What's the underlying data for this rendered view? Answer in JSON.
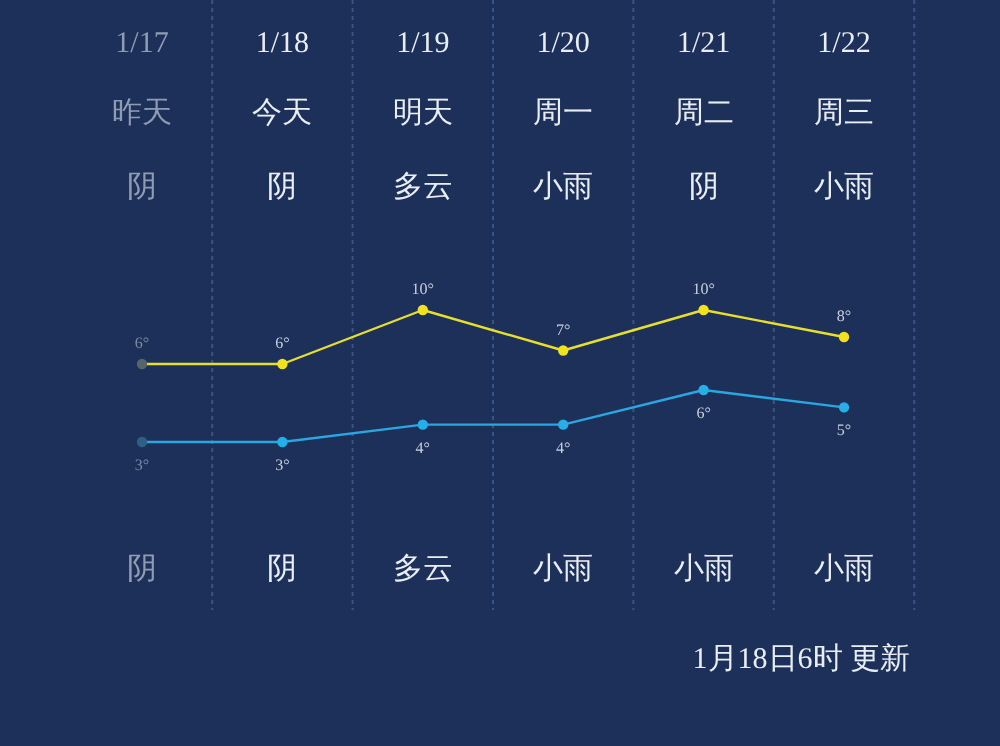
{
  "chart_data": [
    {
      "type": "line",
      "categories": [
        "1/17",
        "1/18",
        "1/19",
        "1/20",
        "1/21",
        "1/22"
      ],
      "series": [
        {
          "color": "#e6df2e",
          "colors": [
            "#55656a",
            "#f2e21e",
            "#f2e21e",
            "#f2e21e",
            "#f2e21e",
            "#f2e21e"
          ],
          "values": [
            6,
            6,
            10,
            7,
            10,
            8
          ],
          "value_labels": [
            "6°",
            "6°",
            "10°",
            "7°",
            "10°",
            "8°"
          ]
        }
      ],
      "grid": "x",
      "marker": "circle",
      "line_style": "solid",
      "annotations": [
        "昨天",
        "今天",
        "明天",
        "周一",
        "周二",
        "周三",
        "阴",
        "阴",
        "多云",
        "小雨",
        "阴",
        "小雨",
        "阴",
        "阴",
        "多云",
        "小雨",
        "小雨",
        "小雨",
        "1月18日6时 更新"
      ]
    },
    {
      "type": "line",
      "categories": [
        null,
        null,
        null,
        null,
        null,
        null
      ],
      "series": [
        {
          "color": "#2aa6e0",
          "colors": [
            "#2f5f86",
            "#26aee8",
            "#26aee8",
            "#26aee8",
            "#26aee8",
            "#26aee8"
          ],
          "values": [
            3,
            3,
            4,
            4,
            6,
            5
          ],
          "value_labels": [
            "3°",
            "3°",
            "4°",
            "4°",
            "6°",
            "5°"
          ]
        }
      ],
      "marker": "circle",
      "line_style": "solid"
    }
  ]
}
